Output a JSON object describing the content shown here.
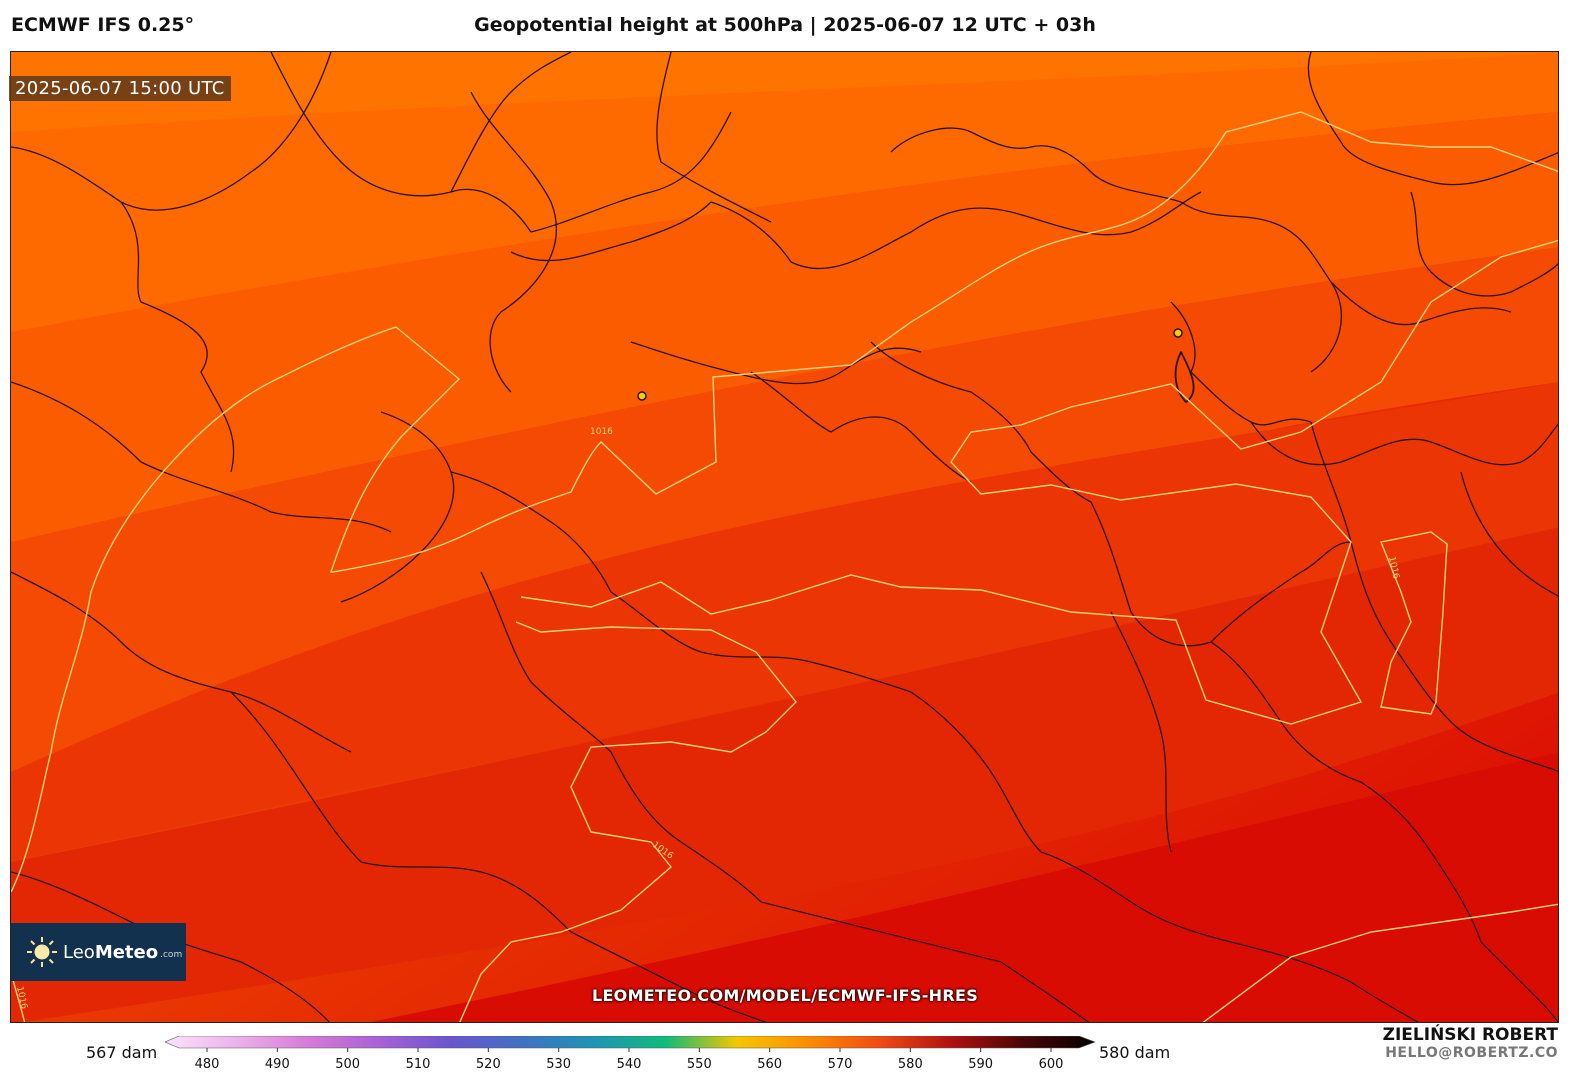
{
  "header": {
    "model": "ECMWF IFS 0.25°",
    "title": "Geopotential height at 500hPa | 2025-06-07 12 UTC + 03h"
  },
  "map": {
    "valid_time": "2025-06-07 15:00 UTC",
    "isobar_label": "1016",
    "isobar_color": "#f2d27a",
    "border_color": "#2a1210",
    "watermark_url": "LEOMETEO.COM/MODEL/ECMWF-IFS-HRES"
  },
  "logo": {
    "name_light": "Leo",
    "name_bold": "Meteo",
    "suffix": ".com"
  },
  "colorbar": {
    "left_label": "567 dam",
    "right_label": "580 dam",
    "ticks": [
      "480",
      "490",
      "500",
      "510",
      "520",
      "530",
      "540",
      "550",
      "560",
      "570",
      "580",
      "590",
      "600"
    ],
    "stops": [
      "#fbe3fb",
      "#ebb2ec",
      "#d77ad8",
      "#a861d6",
      "#6a55cf",
      "#3f72c3",
      "#1e94b6",
      "#11bb7a",
      "#f6c600",
      "#fc8c00",
      "#f14a12",
      "#b01010",
      "#4a0606",
      "#050000"
    ]
  },
  "author": {
    "name": "ZIELIŃSKI ROBERT",
    "email": "HELLO@ROBERTZ.CO"
  }
}
